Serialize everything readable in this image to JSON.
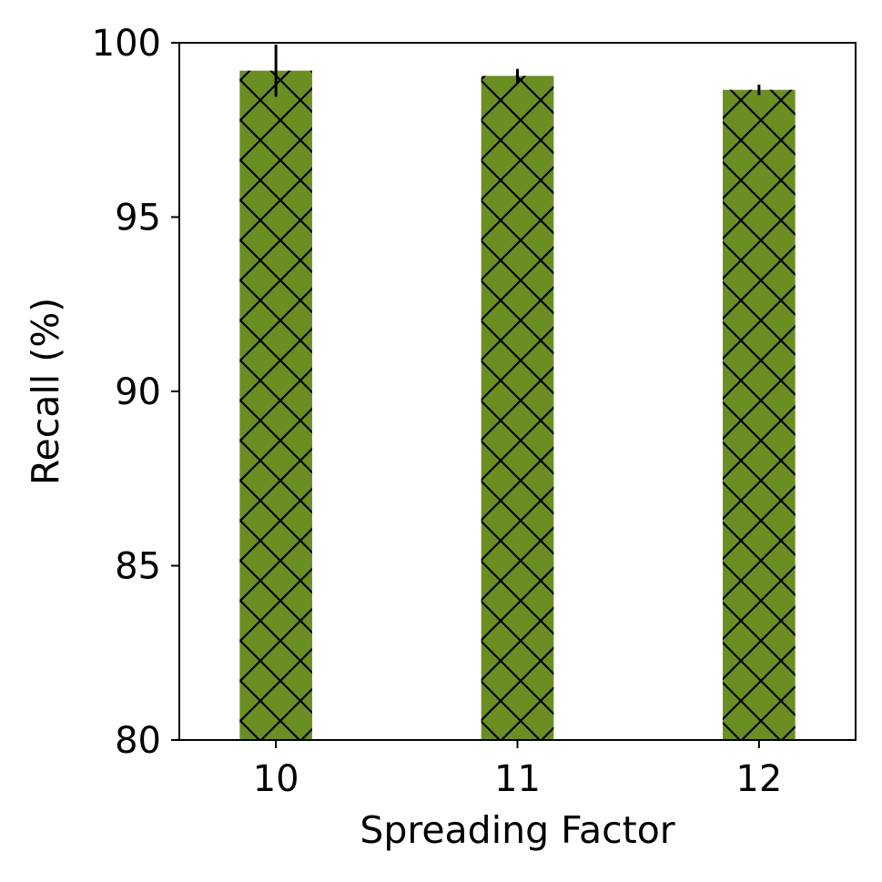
{
  "chart_data": {
    "type": "bar",
    "title": "",
    "xlabel": "Spreading Factor",
    "ylabel": "Recall (%)",
    "categories": [
      "10",
      "11",
      "12"
    ],
    "series": [
      {
        "values": [
          99.2,
          99.05,
          98.65
        ],
        "errors": [
          0.75,
          0.2,
          0.15
        ]
      }
    ],
    "ylim": [
      80,
      100
    ],
    "yticks": [
      80,
      85,
      90,
      95,
      100
    ],
    "grid": false,
    "hatch": "cross-diagonal",
    "colors": {
      "bar": "#6b8e23",
      "hatch": "#000000",
      "axis": "#000000",
      "errorbar": "#000000"
    }
  }
}
